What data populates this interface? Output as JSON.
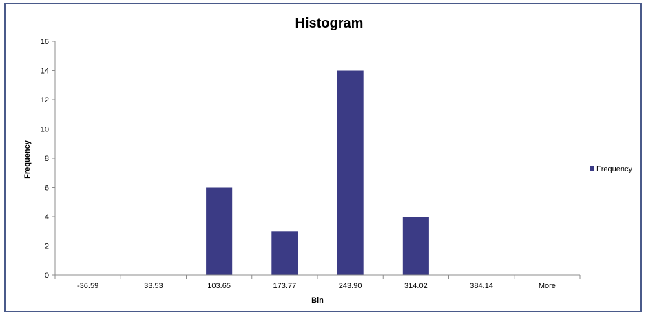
{
  "chart_data": {
    "type": "bar",
    "title": "Histogram",
    "xlabel": "Bin",
    "ylabel": "Frequency",
    "categories": [
      "-36.59",
      "33.53",
      "103.65",
      "173.77",
      "243.90",
      "314.02",
      "384.14",
      "More"
    ],
    "series": [
      {
        "name": "Frequency",
        "values": [
          0,
          0,
          6,
          3,
          14,
          4,
          0,
          0
        ],
        "color": "#3b3b85"
      }
    ],
    "yticks": [
      "0",
      "2",
      "4",
      "6",
      "8",
      "10",
      "12",
      "14",
      "16"
    ],
    "ylim": [
      0,
      16
    ],
    "grid": false,
    "legend_position": "right"
  }
}
